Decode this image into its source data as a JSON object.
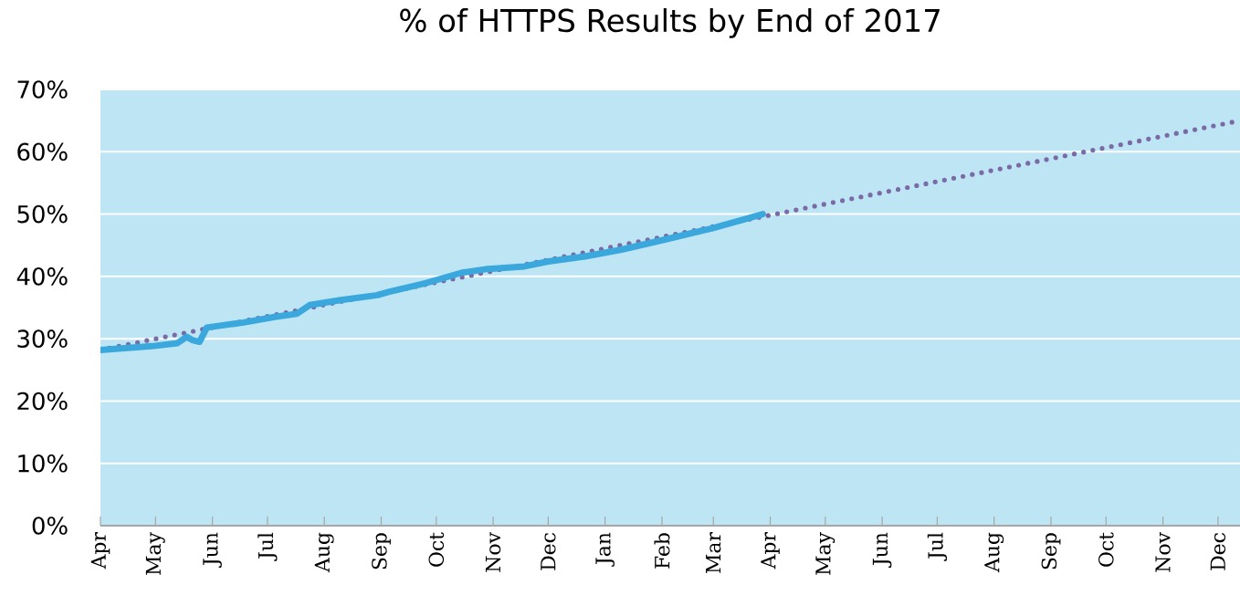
{
  "chart_data": {
    "type": "line",
    "title": "% of HTTPS Results by End of 2017",
    "xlim": [
      "2016-04-01",
      "2017-12-13"
    ],
    "ylim": [
      0,
      70
    ],
    "xticks": [
      {
        "value": "2016-04-01",
        "label": "Apr"
      },
      {
        "value": "2016-05-01",
        "label": "May"
      },
      {
        "value": "2016-06-01",
        "label": "Jun"
      },
      {
        "value": "2016-07-01",
        "label": "Jul"
      },
      {
        "value": "2016-08-01",
        "label": "Aug"
      },
      {
        "value": "2016-09-01",
        "label": "Sep"
      },
      {
        "value": "2016-10-01",
        "label": "Oct"
      },
      {
        "value": "2016-11-01",
        "label": "Nov"
      },
      {
        "value": "2016-12-01",
        "label": "Dec"
      },
      {
        "value": "2017-01-01",
        "label": "Jan"
      },
      {
        "value": "2017-02-01",
        "label": "Feb"
      },
      {
        "value": "2017-03-01",
        "label": "Mar"
      },
      {
        "value": "2017-04-01",
        "label": "Apr"
      },
      {
        "value": "2017-05-01",
        "label": "May"
      },
      {
        "value": "2017-06-01",
        "label": "Jun"
      },
      {
        "value": "2017-07-01",
        "label": "Jul"
      },
      {
        "value": "2017-08-01",
        "label": "Aug"
      },
      {
        "value": "2017-09-01",
        "label": "Sep"
      },
      {
        "value": "2017-10-01",
        "label": "Oct"
      },
      {
        "value": "2017-11-01",
        "label": "Nov"
      },
      {
        "value": "2017-12-01",
        "label": "Dec"
      }
    ],
    "yticks": [
      {
        "value": 0,
        "label": "0%"
      },
      {
        "value": 10,
        "label": "10%"
      },
      {
        "value": 20,
        "label": "20%"
      },
      {
        "value": 30,
        "label": "30%"
      },
      {
        "value": 40,
        "label": "40%"
      },
      {
        "value": 50,
        "label": "50%"
      },
      {
        "value": 60,
        "label": "60%"
      },
      {
        "value": 70,
        "label": "70%"
      }
    ],
    "grid": "y",
    "series": [
      {
        "color": "#7a6aa6",
        "line_style": "dotted",
        "x": [
          "2016-04-01",
          "2017-12-13"
        ],
        "values": [
          28.2,
          65.0
        ]
      },
      {
        "color": "#3aa8dc",
        "line_style": "solid",
        "x": [
          "2016-04-01",
          "2016-04-29",
          "2016-05-13",
          "2016-05-18",
          "2016-05-21",
          "2016-05-25",
          "2016-05-29",
          "2016-06-18",
          "2016-07-05",
          "2016-07-17",
          "2016-07-24",
          "2016-08-10",
          "2016-08-30",
          "2016-09-05",
          "2016-09-25",
          "2016-10-15",
          "2016-10-29",
          "2016-11-18",
          "2016-12-01",
          "2016-12-21",
          "2017-01-10",
          "2017-02-01",
          "2017-02-28",
          "2017-03-28"
        ],
        "values": [
          28.2,
          28.8,
          29.3,
          30.3,
          29.8,
          29.5,
          31.8,
          32.6,
          33.5,
          34.0,
          35.4,
          36.2,
          37.0,
          37.5,
          38.9,
          40.6,
          41.2,
          41.6,
          42.4,
          43.2,
          44.3,
          45.8,
          47.7,
          50.0
        ]
      }
    ]
  }
}
